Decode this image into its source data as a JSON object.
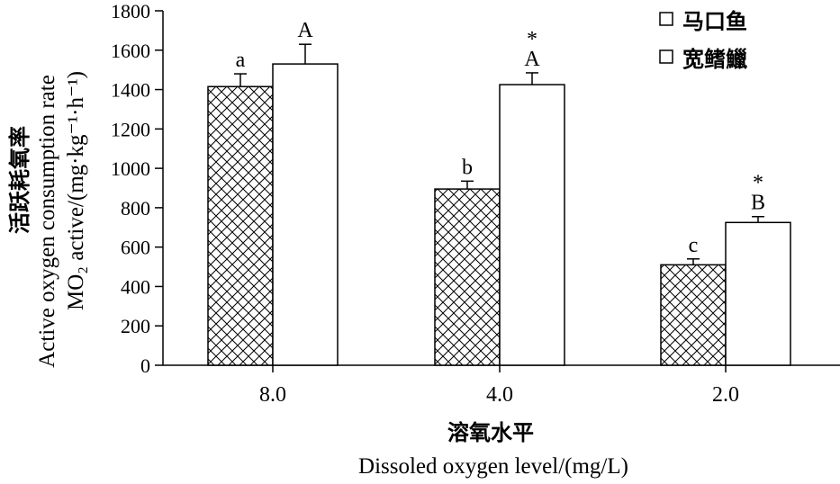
{
  "chart_data": {
    "type": "bar",
    "categories": [
      "8.0",
      "4.0",
      "2.0"
    ],
    "series": [
      {
        "name": "马口鱼",
        "values": [
          1415,
          895,
          510
        ],
        "errors": [
          65,
          40,
          30
        ],
        "labels": [
          "a",
          "b",
          "c"
        ],
        "significance": [
          "",
          "",
          ""
        ],
        "fill": "crosshatch"
      },
      {
        "name": "宽鳍鱲",
        "values": [
          1530,
          1425,
          725
        ],
        "errors": [
          100,
          60,
          30
        ],
        "labels": [
          "A",
          "A",
          "B"
        ],
        "significance": [
          "",
          "*",
          "*"
        ],
        "fill": "white"
      }
    ],
    "ylim": [
      0,
      1800
    ],
    "yticks": [
      "0",
      "200",
      "400",
      "600",
      "800",
      "1000",
      "1200",
      "1400",
      "1600",
      "1800"
    ],
    "ylabel_cn": "活跃耗氧率",
    "ylabel_en": "Active oxygen consumption rate",
    "ylabel_unit": "MO₂ active/(mg·kg⁻¹·h⁻¹)",
    "xlabel_cn": "溶氧水平",
    "xlabel_en": "Dissoled oxygen level/(mg/L)",
    "legend_position": "top-right",
    "grid": false
  }
}
